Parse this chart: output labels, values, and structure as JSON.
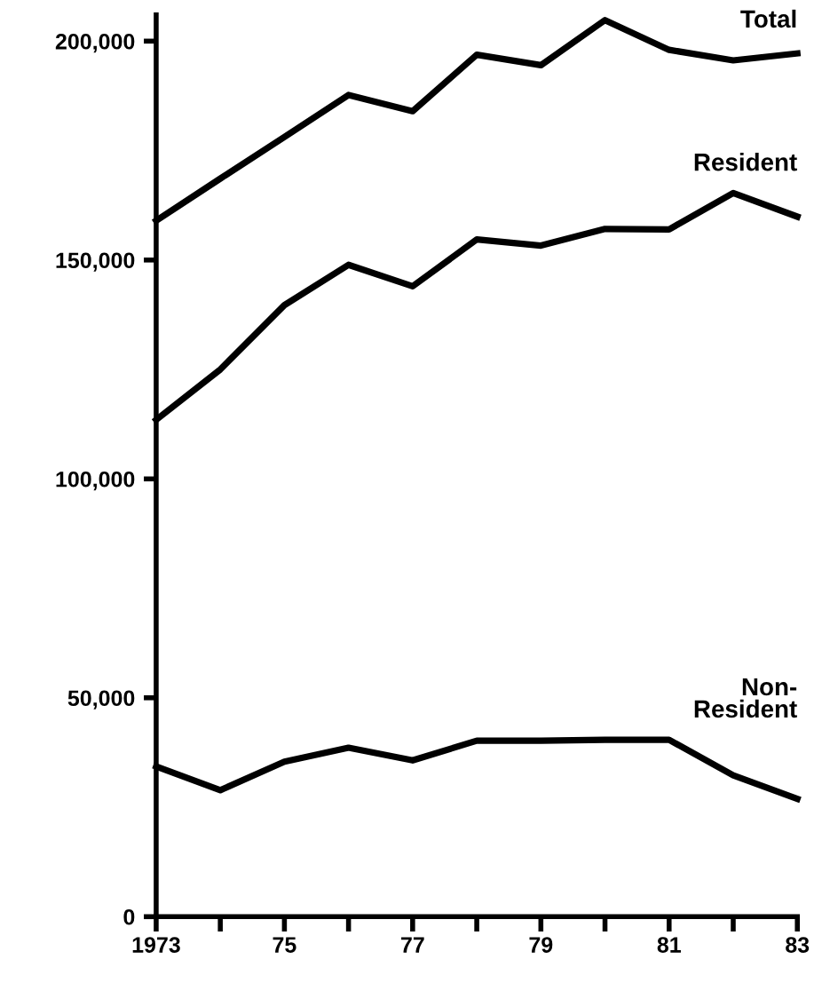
{
  "chart_data": {
    "type": "line",
    "x": [
      1973,
      1974,
      1975,
      1976,
      1977,
      1978,
      1979,
      1980,
      1981,
      1982,
      1983
    ],
    "series": [
      {
        "name": "Total",
        "color": "#000000",
        "values": [
          159000,
          168600,
          178100,
          187700,
          184000,
          196900,
          194500,
          204800,
          198000,
          195600,
          197200
        ]
      },
      {
        "name": "Resident",
        "color": "#000000",
        "values": [
          113500,
          125000,
          139700,
          148900,
          144000,
          154700,
          153300,
          157100,
          157000,
          165300,
          159900
        ]
      },
      {
        "name": "Non-\nResident",
        "color": "#000000",
        "values": [
          34300,
          28900,
          35400,
          38600,
          35700,
          40200,
          40200,
          40400,
          40400,
          32300,
          26900
        ]
      }
    ],
    "xlim": [
      1973,
      1983
    ],
    "xticks": [
      {
        "value": 1973,
        "label": "1973"
      },
      {
        "value": 1974,
        "label": null
      },
      {
        "value": 1975,
        "label": "75"
      },
      {
        "value": 1976,
        "label": null
      },
      {
        "value": 1977,
        "label": "77"
      },
      {
        "value": 1978,
        "label": null
      },
      {
        "value": 1979,
        "label": "79"
      },
      {
        "value": 1980,
        "label": null
      },
      {
        "value": 1981,
        "label": "81"
      },
      {
        "value": 1982,
        "label": null
      },
      {
        "value": 1983,
        "label": "83"
      }
    ],
    "ylim": [
      0,
      206000
    ],
    "yticks": [
      0,
      {
        "value": 50000,
        "label": "50,000"
      },
      {
        "value": 100000,
        "label": "100,000"
      },
      {
        "value": 150000,
        "label": "150,000"
      },
      {
        "value": 200000,
        "label": "200,000"
      }
    ],
    "grid": false,
    "legend": false,
    "marker": "none",
    "line_style": "solid"
  }
}
